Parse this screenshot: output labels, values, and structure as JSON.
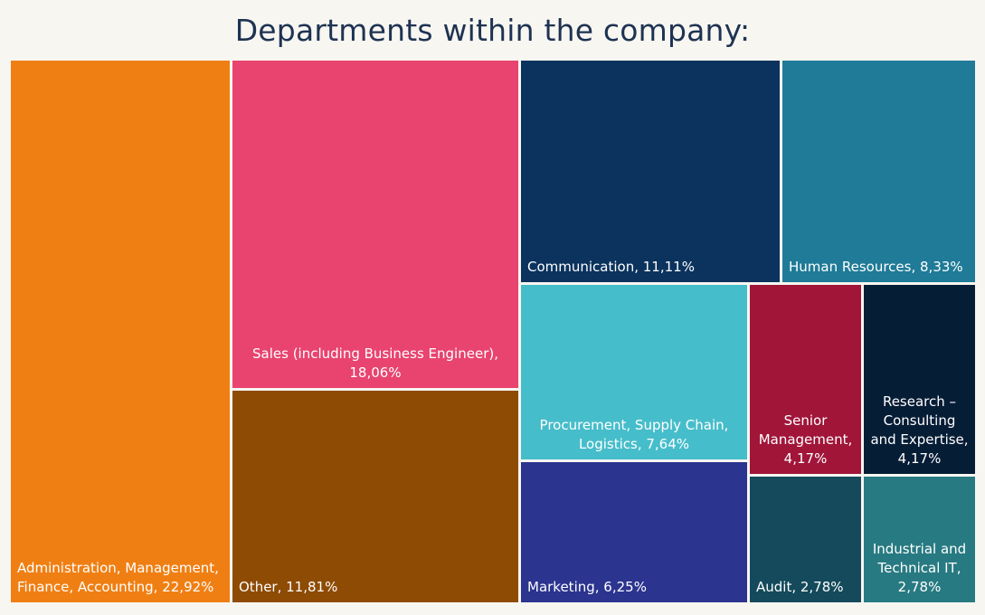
{
  "chart_data": {
    "type": "treemap",
    "title": "Departments within the company:",
    "items": [
      {
        "name": "Administration, Management, Finance, Accounting",
        "value": 22.92,
        "label": "Administration, Management,\nFinance, Accounting, 22,92%",
        "color": "#f07f13"
      },
      {
        "name": "Sales (including Business Engineer)",
        "value": 18.06,
        "label": "Sales (including Business Engineer),\n18,06%",
        "color": "#e8446f"
      },
      {
        "name": "Other",
        "value": 11.81,
        "label": "Other, 11,81%",
        "color": "#8e4b04"
      },
      {
        "name": "Communication",
        "value": 11.11,
        "label": "Communication, 11,11%",
        "color": "#0b335e"
      },
      {
        "name": "Human Resources",
        "value": 8.33,
        "label": "Human Resources, 8,33%",
        "color": "#1f7b97"
      },
      {
        "name": "Procurement, Supply Chain, Logistics",
        "value": 7.64,
        "label": "Procurement, Supply Chain,\nLogistics, 7,64%",
        "color": "#46bdca"
      },
      {
        "name": "Marketing",
        "value": 6.25,
        "label": "Marketing, 6,25%",
        "color": "#2b348f"
      },
      {
        "name": "Senior Management",
        "value": 4.17,
        "label": "Senior\nManagement,\n4,17%",
        "color": "#a11539"
      },
      {
        "name": "Research – Consulting and Expertise",
        "value": 4.17,
        "label": "Research –\nConsulting\nand Expertise,\n4,17%",
        "color": "#061d36"
      },
      {
        "name": "Audit",
        "value": 2.78,
        "label": "Audit, 2,78%",
        "color": "#144a5b"
      },
      {
        "name": "Industrial and Technical IT",
        "value": 2.78,
        "label": "Industrial and\nTechnical IT,\n2,78%",
        "color": "#287a82"
      }
    ]
  }
}
